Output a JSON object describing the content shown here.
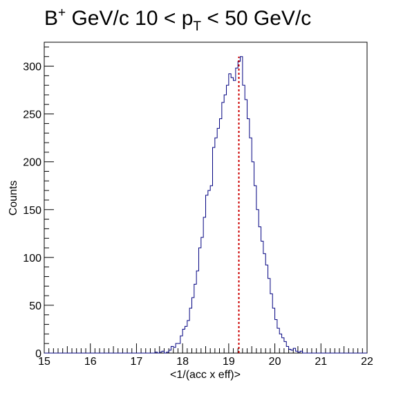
{
  "chart_data": {
    "type": "histogram",
    "title": {
      "main": "B",
      "sup": "+",
      "mid": " GeV/c 10 < p",
      "sub": "T",
      "tail": " < 50 GeV/c"
    },
    "xlabel": "<1/(acc x eff)>",
    "ylabel": "Counts",
    "xlim": [
      15,
      22
    ],
    "ylim": [
      0,
      325
    ],
    "x_ticks": [
      "15",
      "16",
      "17",
      "18",
      "19",
      "20",
      "21",
      "22"
    ],
    "y_ticks": [
      "0",
      "50",
      "100",
      "150",
      "200",
      "250",
      "300"
    ],
    "y_tick_values": [
      0,
      50,
      100,
      150,
      200,
      250,
      300
    ],
    "grid": false,
    "legend": "none",
    "line_color": "#000080",
    "marker_color": "#cc0000",
    "marker_x": 19.22,
    "marker_label": "",
    "bin_width": 0.05,
    "bin_start": 17.4,
    "values": [
      1,
      0,
      1,
      2,
      0,
      1,
      3,
      7,
      6,
      10,
      10,
      18,
      25,
      28,
      34,
      47,
      58,
      72,
      86,
      110,
      121,
      142,
      165,
      170,
      175,
      215,
      225,
      235,
      245,
      262,
      270,
      280,
      292,
      288,
      285,
      298,
      305,
      310,
      280,
      265,
      245,
      225,
      200,
      175,
      150,
      132,
      117,
      104,
      92,
      78,
      62,
      47,
      35,
      26,
      20,
      16,
      12,
      7,
      4,
      3,
      5,
      2,
      1,
      2
    ]
  }
}
